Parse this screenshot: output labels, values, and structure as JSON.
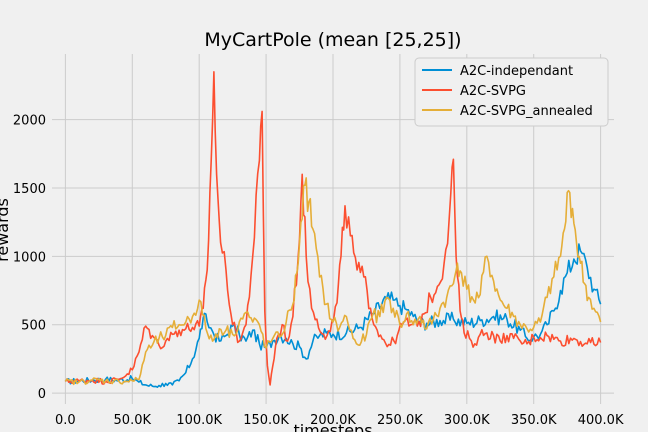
{
  "chart_data": {
    "type": "line",
    "title": "MyCartPole (mean [25,25])",
    "xlabel": "timesteps",
    "ylabel": "rewards",
    "xlim": [
      -10000,
      410000
    ],
    "ylim": [
      -80,
      2480
    ],
    "xticks": [
      {
        "value": 0,
        "label": "0.0"
      },
      {
        "value": 50000,
        "label": "50.0K"
      },
      {
        "value": 100000,
        "label": "100.0K"
      },
      {
        "value": 150000,
        "label": "150.0K"
      },
      {
        "value": 200000,
        "label": "200.0K"
      },
      {
        "value": 250000,
        "label": "250.0K"
      },
      {
        "value": 300000,
        "label": "300.0K"
      },
      {
        "value": 350000,
        "label": "350.0K"
      },
      {
        "value": 400000,
        "label": "400.0K"
      }
    ],
    "yticks": [
      {
        "value": 0,
        "label": "0"
      },
      {
        "value": 500,
        "label": "500"
      },
      {
        "value": 1000,
        "label": "1000"
      },
      {
        "value": 1500,
        "label": "1500"
      },
      {
        "value": 2000,
        "label": "2000"
      }
    ],
    "grid": true,
    "legend_position": "top-right",
    "series": [
      {
        "name": "A2C-independant",
        "color": "#008fd5",
        "x": [
          0,
          10000,
          20000,
          30000,
          40000,
          50000,
          55000,
          60000,
          65000,
          70000,
          75000,
          80000,
          85000,
          90000,
          95000,
          100000,
          103000,
          106000,
          110000,
          115000,
          120000,
          125000,
          130000,
          135000,
          140000,
          145000,
          150000,
          155000,
          160000,
          165000,
          170000,
          175000,
          180000,
          185000,
          190000,
          195000,
          200000,
          210000,
          220000,
          230000,
          240000,
          245000,
          250000,
          255000,
          260000,
          265000,
          270000,
          280000,
          290000,
          300000,
          310000,
          320000,
          330000,
          340000,
          345000,
          350000,
          355000,
          360000,
          365000,
          370000,
          375000,
          380000,
          385000,
          390000,
          395000,
          400000
        ],
        "y": [
          85,
          90,
          95,
          100,
          95,
          105,
          80,
          60,
          50,
          55,
          70,
          60,
          90,
          150,
          250,
          400,
          550,
          520,
          450,
          380,
          420,
          490,
          430,
          380,
          460,
          360,
          330,
          380,
          420,
          400,
          360,
          340,
          250,
          380,
          420,
          440,
          430,
          440,
          480,
          580,
          690,
          680,
          640,
          610,
          560,
          520,
          510,
          530,
          540,
          510,
          530,
          560,
          540,
          460,
          400,
          410,
          430,
          500,
          600,
          750,
          880,
          980,
          1040,
          920,
          760,
          650
        ]
      },
      {
        "name": "A2C-SVPG",
        "color": "#fc4f30",
        "x": [
          0,
          10000,
          20000,
          30000,
          40000,
          50000,
          55000,
          60000,
          65000,
          70000,
          75000,
          80000,
          85000,
          90000,
          95000,
          100000,
          103000,
          106000,
          109000,
          111000,
          113000,
          116000,
          120000,
          125000,
          130000,
          135000,
          140000,
          145000,
          147000,
          149000,
          151000,
          153000,
          155000,
          158000,
          162000,
          166000,
          170000,
          174000,
          177000,
          180000,
          184000,
          188000,
          193000,
          198000,
          203000,
          206000,
          209000,
          213000,
          218000,
          223000,
          228000,
          233000,
          238000,
          243000,
          248000,
          253000,
          258000,
          263000,
          268000,
          273000,
          278000,
          283000,
          287000,
          290000,
          292000,
          295000,
          298000,
          302000,
          306000,
          310000,
          315000,
          320000,
          325000,
          330000,
          335000,
          340000,
          345000,
          350000,
          360000,
          370000,
          380000,
          390000,
          400000
        ],
        "y": [
          85,
          90,
          95,
          85,
          100,
          170,
          300,
          490,
          420,
          350,
          380,
          430,
          460,
          470,
          480,
          490,
          620,
          900,
          1700,
          2350,
          1600,
          1100,
          900,
          500,
          380,
          500,
          1000,
          1700,
          2060,
          600,
          200,
          60,
          200,
          400,
          500,
          380,
          560,
          1000,
          1600,
          1000,
          620,
          540,
          430,
          450,
          660,
          1000,
          1370,
          1150,
          900,
          850,
          620,
          460,
          390,
          350,
          420,
          520,
          500,
          490,
          580,
          700,
          780,
          950,
          1300,
          1710,
          1000,
          600,
          440,
          400,
          360,
          430,
          440,
          420,
          380,
          420,
          400,
          380,
          360,
          410,
          420,
          380,
          400,
          360,
          370
        ]
      },
      {
        "name": "A2C-SVPG_annealed",
        "color": "#e5ae38",
        "x": [
          0,
          10000,
          20000,
          30000,
          40000,
          50000,
          55000,
          60000,
          65000,
          70000,
          75000,
          80000,
          85000,
          90000,
          95000,
          100000,
          105000,
          110000,
          115000,
          120000,
          125000,
          130000,
          135000,
          140000,
          145000,
          150000,
          155000,
          160000,
          165000,
          170000,
          173000,
          176000,
          179000,
          182000,
          185000,
          190000,
          195000,
          200000,
          205000,
          210000,
          215000,
          220000,
          225000,
          230000,
          235000,
          240000,
          245000,
          250000,
          255000,
          260000,
          265000,
          270000,
          275000,
          280000,
          285000,
          290000,
          293000,
          296000,
          300000,
          305000,
          310000,
          315000,
          320000,
          325000,
          330000,
          335000,
          340000,
          345000,
          350000,
          355000,
          360000,
          365000,
          370000,
          373000,
          376000,
          379000,
          382000,
          385000,
          388000,
          391000,
          395000,
          400000
        ],
        "y": [
          85,
          80,
          95,
          90,
          85,
          90,
          100,
          300,
          350,
          400,
          420,
          480,
          500,
          520,
          560,
          680,
          470,
          380,
          470,
          460,
          430,
          520,
          590,
          520,
          500,
          330,
          400,
          410,
          520,
          650,
          880,
          1250,
          1520,
          1400,
          1200,
          850,
          650,
          520,
          480,
          560,
          400,
          350,
          430,
          580,
          560,
          700,
          620,
          500,
          580,
          500,
          560,
          470,
          540,
          620,
          700,
          800,
          950,
          880,
          760,
          680,
          720,
          1000,
          820,
          680,
          620,
          560,
          500,
          470,
          480,
          520,
          700,
          850,
          1000,
          1200,
          1480,
          1350,
          1100,
          950,
          800,
          700,
          620,
          520
        ]
      }
    ]
  }
}
